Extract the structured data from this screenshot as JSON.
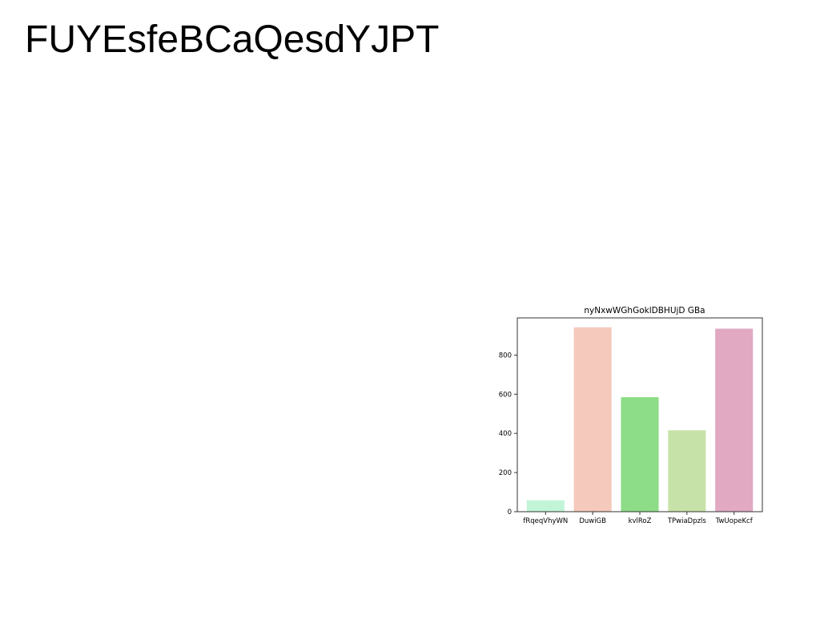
{
  "page": {
    "heading": "FUYEsfeBCaQesdYJPT"
  },
  "chart_data": {
    "type": "bar",
    "title": "nyNxwWGhGoklDBHUjD GBa",
    "xlabel": "",
    "ylabel": "",
    "categories": [
      "fRqeqVhyWN",
      "DuwiGB",
      "kvlRoZ",
      "TPwiaDpzls",
      "TwUopeKcf"
    ],
    "values": [
      58,
      942,
      585,
      416,
      935
    ],
    "colors": [
      "#c2f5d8",
      "#f5c9bb",
      "#8ddd88",
      "#c7e2a8",
      "#e1a9c2"
    ],
    "ylim": [
      0,
      990
    ],
    "yticks": [
      0,
      200,
      400,
      600,
      800
    ],
    "grid": false
  }
}
